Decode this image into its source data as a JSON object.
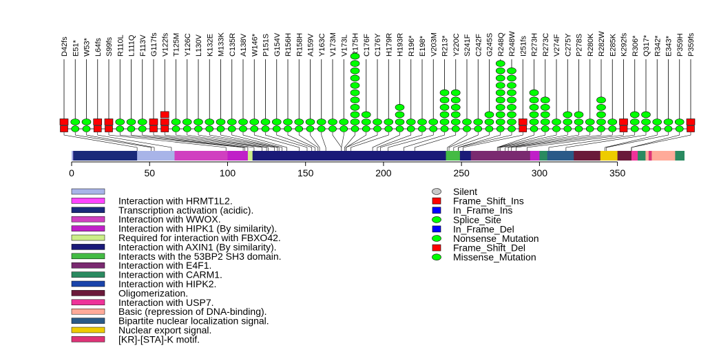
{
  "chart_data": {
    "type": "lollipop",
    "protein_length": 393,
    "x_axis": {
      "ticks": [
        0,
        50,
        100,
        150,
        200,
        250,
        300,
        350
      ]
    },
    "mutation_types": [
      {
        "name": "Silent",
        "color": "#c8c8c8",
        "shape": "circle"
      },
      {
        "name": "Frame_Shift_Ins",
        "color": "#ff0000",
        "shape": "square"
      },
      {
        "name": "In_Frame_Ins",
        "color": "#0000ff",
        "shape": "square"
      },
      {
        "name": "Splice_Site",
        "color": "#00ff00",
        "shape": "circle"
      },
      {
        "name": "In_Frame_Del",
        "color": "#0000ff",
        "shape": "square"
      },
      {
        "name": "Nonsense_Mutation",
        "color": "#00ff00",
        "shape": "circle"
      },
      {
        "name": "Frame_Shift_Del",
        "color": "#ff0000",
        "shape": "square"
      },
      {
        "name": "Missense_Mutation",
        "color": "#00ff00",
        "shape": "circle"
      }
    ],
    "domains": [
      {
        "name": "",
        "color": "#a8b4e8",
        "start": 0,
        "end": 393
      },
      {
        "name": "Interaction with HRMT1L2.",
        "color": "#ff44ff",
        "start": 1,
        "end": 35
      },
      {
        "name": "Transcription activation (acidic).",
        "color": "#1a2a7a",
        "start": 1,
        "end": 42
      },
      {
        "name": "Interaction with WWOX.",
        "color": "#d040c0",
        "start": 66,
        "end": 110
      },
      {
        "name": "Interaction with HIPK1 (By similarity).",
        "color": "#c020c8",
        "start": 100,
        "end": 370
      },
      {
        "name": "Required for interaction with FBXO42.",
        "color": "#ccee88",
        "start": 113,
        "end": 236
      },
      {
        "name": "Interaction with AXIN1 (By similarity).",
        "color": "#1a1a78",
        "start": 116,
        "end": 292
      },
      {
        "name": "Interacts with the 53BP2 SH3 domain.",
        "color": "#44bb44",
        "start": 240,
        "end": 249
      },
      {
        "name": "Interaction with E4F1.",
        "color": "#7a2a70",
        "start": 256,
        "end": 294
      },
      {
        "name": "Interaction with CARM1.",
        "color": "#2a8a60",
        "start": 300,
        "end": 393
      },
      {
        "name": "Interaction with HIPK2.",
        "color": "#1a44aa",
        "start": 319,
        "end": 360
      },
      {
        "name": "Oligomerization.",
        "color": "#6a1a3a",
        "start": 319,
        "end": 360
      },
      {
        "name": "Interaction with USP7.",
        "color": "#ee3399",
        "start": 359,
        "end": 363
      },
      {
        "name": "Basic (repression of DNA-binding).",
        "color": "#ffaa99",
        "start": 368,
        "end": 387
      },
      {
        "name": "Bipartite nuclear localization signal.",
        "color": "#2a5a88",
        "start": 305,
        "end": 322
      },
      {
        "name": "Nuclear export signal.",
        "color": "#eecc00",
        "start": 339,
        "end": 350
      },
      {
        "name": "[KR]-[STA]-K motif.",
        "color": "#dd3377",
        "start": 370,
        "end": 372
      }
    ],
    "mutations": [
      {
        "label": "D42fs",
        "pos": 42,
        "count": 1,
        "type": "Frame_Shift_Del"
      },
      {
        "label": "E51*",
        "pos": 51,
        "count": 1,
        "type": "Nonsense_Mutation"
      },
      {
        "label": "W53*",
        "pos": 53,
        "count": 1,
        "type": "Nonsense_Mutation"
      },
      {
        "label": "L64fs",
        "pos": 64,
        "count": 1,
        "type": "Frame_Shift_Del"
      },
      {
        "label": "S99fs",
        "pos": 99,
        "count": 1,
        "type": "Frame_Shift_Del"
      },
      {
        "label": "R110L",
        "pos": 110,
        "count": 1,
        "type": "Missense_Mutation"
      },
      {
        "label": "L111Q",
        "pos": 111,
        "count": 1,
        "type": "Missense_Mutation"
      },
      {
        "label": "F113V",
        "pos": 113,
        "count": 1,
        "type": "Missense_Mutation"
      },
      {
        "label": "G117fs",
        "pos": 117,
        "count": 1,
        "type": "Frame_Shift_Del"
      },
      {
        "label": "V122fs",
        "pos": 122,
        "count": 2,
        "type": "Frame_Shift_Ins"
      },
      {
        "label": "T125M",
        "pos": 125,
        "count": 1,
        "type": "Missense_Mutation"
      },
      {
        "label": "Y126C",
        "pos": 126,
        "count": 1,
        "type": "Missense_Mutation"
      },
      {
        "label": "L130V",
        "pos": 130,
        "count": 1,
        "type": "Missense_Mutation"
      },
      {
        "label": "K132E",
        "pos": 132,
        "count": 1,
        "type": "Missense_Mutation"
      },
      {
        "label": "M133K",
        "pos": 133,
        "count": 1,
        "type": "Missense_Mutation"
      },
      {
        "label": "C135R",
        "pos": 135,
        "count": 1,
        "type": "Missense_Mutation"
      },
      {
        "label": "A138V",
        "pos": 138,
        "count": 1,
        "type": "Missense_Mutation"
      },
      {
        "label": "W146*",
        "pos": 146,
        "count": 1,
        "type": "Nonsense_Mutation"
      },
      {
        "label": "P151S",
        "pos": 151,
        "count": 1,
        "type": "Missense_Mutation"
      },
      {
        "label": "G154V",
        "pos": 154,
        "count": 1,
        "type": "Missense_Mutation"
      },
      {
        "label": "R156H",
        "pos": 156,
        "count": 1,
        "type": "Missense_Mutation"
      },
      {
        "label": "R158H",
        "pos": 158,
        "count": 1,
        "type": "Missense_Mutation"
      },
      {
        "label": "A159V",
        "pos": 159,
        "count": 1,
        "type": "Missense_Mutation"
      },
      {
        "label": "Y163C",
        "pos": 163,
        "count": 1,
        "type": "Missense_Mutation"
      },
      {
        "label": "V173M",
        "pos": 173,
        "count": 1,
        "type": "Missense_Mutation"
      },
      {
        "label": "V173L",
        "pos": 173,
        "count": 1,
        "type": "Missense_Mutation"
      },
      {
        "label": "R175H",
        "pos": 175,
        "count": 10,
        "type": "Missense_Mutation"
      },
      {
        "label": "C176F",
        "pos": 176,
        "count": 2,
        "type": "Missense_Mutation"
      },
      {
        "label": "C176Y",
        "pos": 176,
        "count": 1,
        "type": "Missense_Mutation"
      },
      {
        "label": "H179R",
        "pos": 179,
        "count": 1,
        "type": "Missense_Mutation"
      },
      {
        "label": "H193R",
        "pos": 193,
        "count": 3,
        "type": "Missense_Mutation"
      },
      {
        "label": "R196*",
        "pos": 196,
        "count": 1,
        "type": "Nonsense_Mutation"
      },
      {
        "label": "E198*",
        "pos": 198,
        "count": 1,
        "type": "Nonsense_Mutation"
      },
      {
        "label": "V203M",
        "pos": 203,
        "count": 1,
        "type": "Missense_Mutation"
      },
      {
        "label": "R213*",
        "pos": 213,
        "count": 5,
        "type": "Nonsense_Mutation"
      },
      {
        "label": "Y220C",
        "pos": 220,
        "count": 5,
        "type": "Missense_Mutation"
      },
      {
        "label": "S241F",
        "pos": 241,
        "count": 1,
        "type": "Missense_Mutation"
      },
      {
        "label": "C242F",
        "pos": 242,
        "count": 1,
        "type": "Missense_Mutation"
      },
      {
        "label": "G245S",
        "pos": 245,
        "count": 2,
        "type": "Missense_Mutation"
      },
      {
        "label": "R248Q",
        "pos": 248,
        "count": 9,
        "type": "Missense_Mutation"
      },
      {
        "label": "R248W",
        "pos": 248,
        "count": 8,
        "type": "Missense_Mutation"
      },
      {
        "label": "I251fs",
        "pos": 251,
        "count": 1,
        "type": "Frame_Shift_Del"
      },
      {
        "label": "R273H",
        "pos": 273,
        "count": 5,
        "type": "Missense_Mutation"
      },
      {
        "label": "R273C",
        "pos": 273,
        "count": 4,
        "type": "Missense_Mutation"
      },
      {
        "label": "V274F",
        "pos": 274,
        "count": 1,
        "type": "Missense_Mutation"
      },
      {
        "label": "C275Y",
        "pos": 275,
        "count": 2,
        "type": "Missense_Mutation"
      },
      {
        "label": "P278S",
        "pos": 278,
        "count": 2,
        "type": "Missense_Mutation"
      },
      {
        "label": "R280K",
        "pos": 280,
        "count": 1,
        "type": "Missense_Mutation"
      },
      {
        "label": "R282W",
        "pos": 282,
        "count": 4,
        "type": "Missense_Mutation"
      },
      {
        "label": "E285K",
        "pos": 285,
        "count": 1,
        "type": "Missense_Mutation"
      },
      {
        "label": "K292fs",
        "pos": 292,
        "count": 1,
        "type": "Frame_Shift_Del"
      },
      {
        "label": "R306*",
        "pos": 306,
        "count": 2,
        "type": "Nonsense_Mutation"
      },
      {
        "label": "Q317*",
        "pos": 317,
        "count": 2,
        "type": "Nonsense_Mutation"
      },
      {
        "label": "R342*",
        "pos": 342,
        "count": 1,
        "type": "Nonsense_Mutation"
      },
      {
        "label": "E343*",
        "pos": 343,
        "count": 1,
        "type": "Nonsense_Mutation"
      },
      {
        "label": "P359H",
        "pos": 359,
        "count": 1,
        "type": "Missense_Mutation"
      },
      {
        "label": "P359fs",
        "pos": 359,
        "count": 1,
        "type": "Frame_Shift_Del"
      }
    ]
  }
}
